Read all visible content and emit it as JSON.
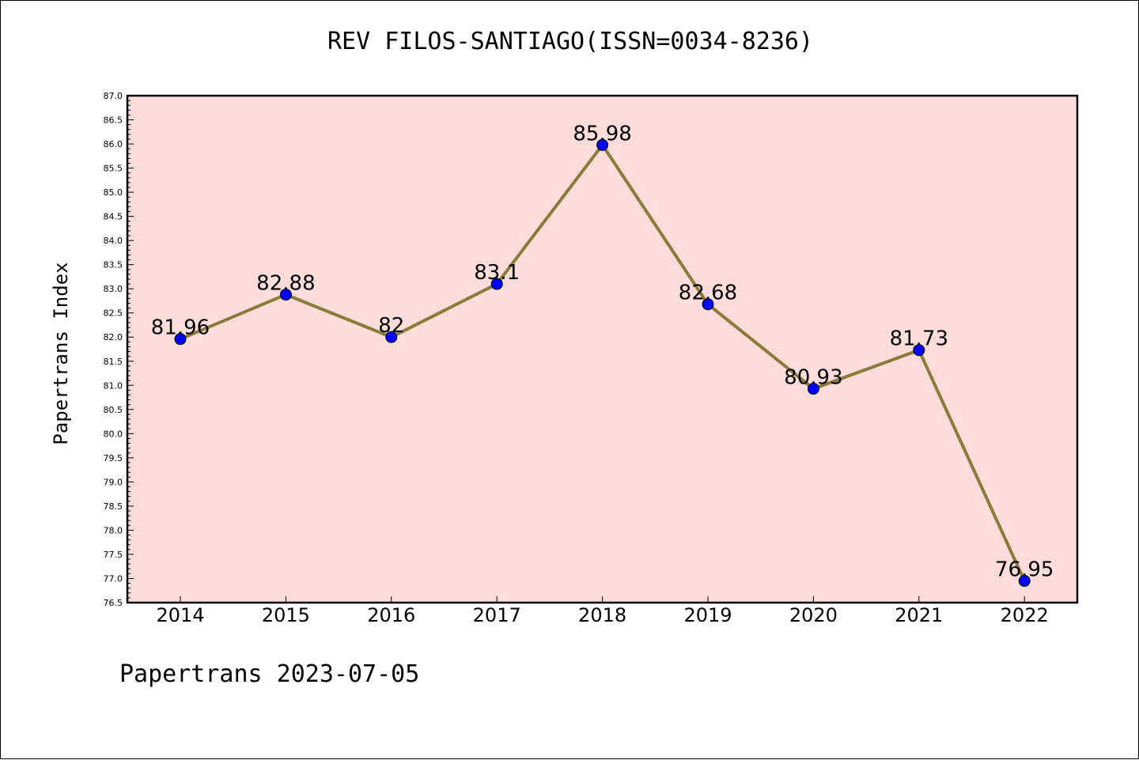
{
  "chart_data": {
    "type": "line",
    "title": "REV FILOS-SANTIAGO(ISSN=0034-8236)",
    "xlabel": "",
    "ylabel": "Papertrans Index",
    "categories": [
      "2014",
      "2015",
      "2016",
      "2017",
      "2018",
      "2019",
      "2020",
      "2021",
      "2022"
    ],
    "series": [
      {
        "values": [
          81.96,
          82.88,
          82,
          83.1,
          85.98,
          82.68,
          80.93,
          81.73,
          76.95
        ]
      }
    ],
    "data_labels": [
      "81.96",
      "82.88",
      "82",
      "83.1",
      "85.98",
      "82.68",
      "80.93",
      "81.73",
      "76.95"
    ],
    "ylim": [
      76.5,
      87.0
    ],
    "yticks": [
      "76.5",
      "77.0",
      "77.5",
      "78.0",
      "78.5",
      "79.0",
      "79.5",
      "80.0",
      "80.5",
      "81.0",
      "81.5",
      "82.0",
      "82.5",
      "83.0",
      "83.5",
      "84.0",
      "84.5",
      "85.0",
      "85.5",
      "86.0",
      "86.5",
      "87.0"
    ],
    "grid": false,
    "colors": {
      "plot_background": "#fddcda",
      "line": "#8b7a3a",
      "marker": "#0000ff",
      "marker_edge": "#000000"
    }
  },
  "footer": {
    "text": "Papertrans 2023-07-05"
  }
}
